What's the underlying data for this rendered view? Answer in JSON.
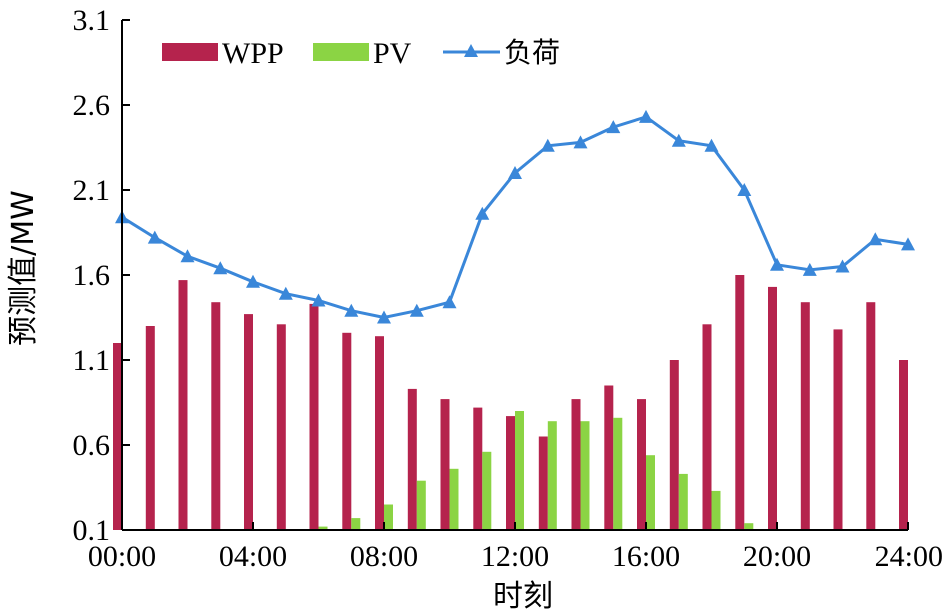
{
  "chart_data": {
    "type": "bar",
    "xlabel": "时刻",
    "ylabel": "预测值/MW",
    "ylim": [
      0.1,
      3.1
    ],
    "yticks": [
      "0.1",
      "0.6",
      "1.1",
      "1.6",
      "2.1",
      "2.6",
      "3.1"
    ],
    "xticks": [
      "00:00",
      "04:00",
      "08:00",
      "12:00",
      "16:00",
      "20:00",
      "24:00"
    ],
    "grid": false,
    "legend_position": "top",
    "x": [
      0,
      1,
      2,
      3,
      4,
      5,
      6,
      7,
      8,
      9,
      10,
      11,
      12,
      13,
      14,
      15,
      16,
      17,
      18,
      19,
      20,
      21,
      22,
      23,
      24
    ],
    "series": [
      {
        "name": "WPP",
        "type": "bar",
        "color": "#B5234D",
        "values": [
          1.2,
          1.3,
          1.57,
          1.44,
          1.37,
          1.31,
          1.43,
          1.26,
          1.24,
          0.93,
          0.87,
          0.82,
          0.77,
          0.65,
          0.87,
          0.95,
          0.87,
          1.1,
          1.31,
          1.6,
          1.53,
          1.44,
          1.28,
          1.44,
          1.1
        ]
      },
      {
        "name": "PV",
        "type": "bar",
        "color": "#8BD444",
        "values": [
          0,
          0,
          0,
          0,
          0,
          0,
          0.12,
          0.17,
          0.25,
          0.39,
          0.46,
          0.56,
          0.8,
          0.74,
          0.74,
          0.76,
          0.54,
          0.43,
          0.33,
          0.14,
          0,
          0,
          0,
          0,
          0
        ]
      },
      {
        "name": "负荷",
        "type": "line",
        "marker": "triangle",
        "color": "#3A87D9",
        "values": [
          1.94,
          1.82,
          1.71,
          1.64,
          1.56,
          1.49,
          1.45,
          1.39,
          1.35,
          1.39,
          1.44,
          1.96,
          2.2,
          2.36,
          2.38,
          2.47,
          2.53,
          2.39,
          2.36,
          2.1,
          1.66,
          1.63,
          1.65,
          1.81,
          1.78
        ]
      }
    ]
  }
}
